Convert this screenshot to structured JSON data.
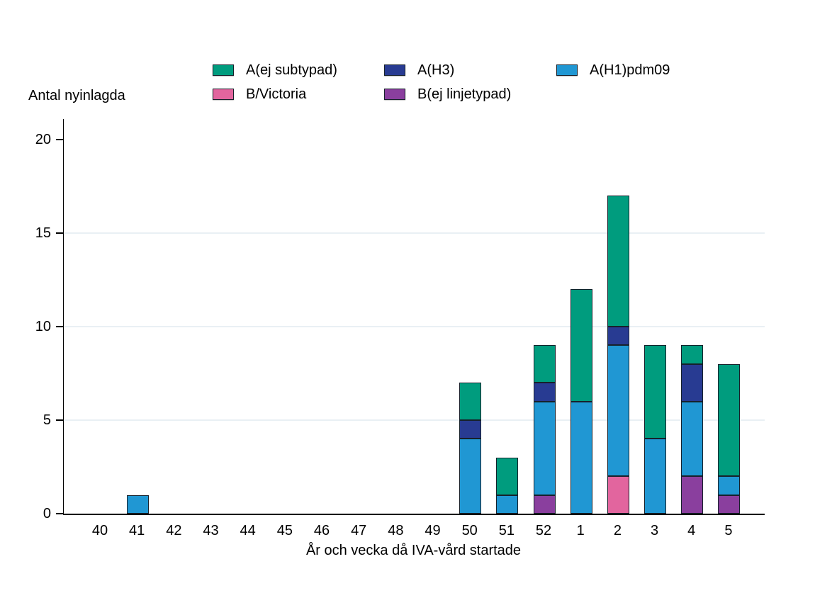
{
  "chart": {
    "y_axis_title": "Antal nyinlagda",
    "x_axis_title": "År och vecka då IVA-vård startade",
    "axis_color": "#000000",
    "gridline_color": "#e9f0f4",
    "bar_border_color": "#17212b",
    "background_color": "#ffffff"
  },
  "chart_data": {
    "type": "bar",
    "stacked": true,
    "title": "",
    "xlabel": "År och vecka då IVA-vård startade",
    "ylabel": "Antal nyinlagda",
    "categories": [
      "40",
      "41",
      "42",
      "43",
      "44",
      "45",
      "46",
      "47",
      "48",
      "49",
      "50",
      "51",
      "52",
      "1",
      "2",
      "3",
      "4",
      "5"
    ],
    "series": [
      {
        "name": "A(ej subtypad)",
        "color": "#009c7e",
        "values": [
          0,
          0,
          0,
          0,
          0,
          0,
          0,
          0,
          0,
          0,
          2,
          2,
          2,
          6,
          7,
          5,
          1,
          6
        ]
      },
      {
        "name": "A(H3)",
        "color": "#283b92",
        "values": [
          0,
          0,
          0,
          0,
          0,
          0,
          0,
          0,
          0,
          0,
          1,
          0,
          1,
          0,
          1,
          0,
          2,
          0
        ]
      },
      {
        "name": "A(H1)pdm09",
        "color": "#2097d3",
        "values": [
          0,
          1,
          0,
          0,
          0,
          0,
          0,
          0,
          0,
          0,
          4,
          1,
          5,
          6,
          7,
          4,
          4,
          1
        ]
      },
      {
        "name": "B/Victoria",
        "color": "#e2659e",
        "values": [
          0,
          0,
          0,
          0,
          0,
          0,
          0,
          0,
          0,
          0,
          0,
          0,
          0,
          0,
          2,
          0,
          0,
          0
        ]
      },
      {
        "name": "B(ej linjetypad)",
        "color": "#8a3f9e",
        "values": [
          0,
          0,
          0,
          0,
          0,
          0,
          0,
          0,
          0,
          0,
          0,
          0,
          1,
          0,
          0,
          0,
          2,
          1
        ]
      }
    ],
    "stack_order_bottom_to_top": [
      "B(ej linjetypad)",
      "B/Victoria",
      "A(H1)pdm09",
      "A(H3)",
      "A(ej subtypad)"
    ],
    "totals": {
      "40": 0,
      "41": 1,
      "42": 0,
      "43": 0,
      "44": 0,
      "45": 0,
      "46": 0,
      "47": 0,
      "48": 0,
      "49": 0,
      "50": 7,
      "51": 3,
      "52": 9,
      "1": 12,
      "2": 17,
      "3": 9,
      "4": 9,
      "5": 8
    },
    "ylim": [
      0,
      20
    ],
    "yticks": [
      0,
      5,
      10,
      15,
      20
    ],
    "gridlines": [
      5,
      10,
      15
    ],
    "grid": true,
    "legend_position": "top",
    "legend_rows": [
      [
        "A(ej subtypad)",
        "A(H3)",
        "A(H1)pdm09"
      ],
      [
        "B/Victoria",
        "B(ej linjetypad)"
      ]
    ]
  }
}
